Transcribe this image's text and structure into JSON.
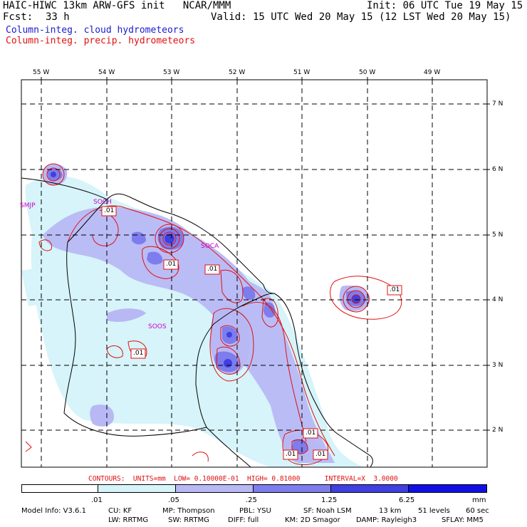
{
  "header": {
    "model_line": "HAIC-HIWC 13km ARW-GFS init   NCAR/MMM",
    "init": "Init: 06 UTC Tue 19 May 15",
    "fcst_label": "Fcst:",
    "fcst_value": "33 h",
    "valid": "Valid: 15 UTC Wed 20 May 15 (12 LST Wed 20 May 15)",
    "field_cloud": "Column-integ. cloud hydrometeors",
    "field_precip": "Column-integ. precip. hydrometeors",
    "color_cloud": "#1a1ad0",
    "color_precip": "#e01010"
  },
  "map": {
    "lon_labels": [
      "55 W",
      "54 W",
      "53 W",
      "52 W",
      "51 W",
      "50 W",
      "49 W"
    ],
    "lat_labels": [
      "7 N",
      "6 N",
      "5 N",
      "4 N",
      "3 N",
      "2 N"
    ],
    "stations": [
      "SMJP",
      "SOCH",
      "SOCA",
      "SOOS"
    ],
    "station_color": "#cc00cc",
    "contour_labels": [
      ".01",
      ".01",
      ".01",
      ".01",
      ".01",
      ".01",
      ".01",
      ".01"
    ]
  },
  "contours": {
    "text": "CONTOURS:  UNITS=mm  LOW= 0.10000E-01  HIGH= 0.81000      INTERVAL=X  3.0000",
    "color": "#e01010"
  },
  "colorbar": {
    "ticks": [
      ".01",
      ".05",
      ".25",
      "1.25",
      "6.25"
    ],
    "unit": "mm",
    "colors": [
      "#ffffff",
      "#d6f4f9",
      "#b8b8f5",
      "#7d7ded",
      "#4040e0",
      "#1010e6"
    ]
  },
  "model_info": {
    "line1": [
      "Model Info: V3.6.1",
      "CU: KF",
      "MP: Thompson",
      "PBL: YSU",
      "SF: Noah LSM",
      "13 km",
      "51 levels",
      "60 sec"
    ],
    "line2": [
      "LW: RRTMG",
      "SW: RRTMG",
      "DIFF: full",
      "KM: 2D Smagor",
      "DAMP: Rayleigh3",
      "SFLAY: MM5"
    ]
  }
}
